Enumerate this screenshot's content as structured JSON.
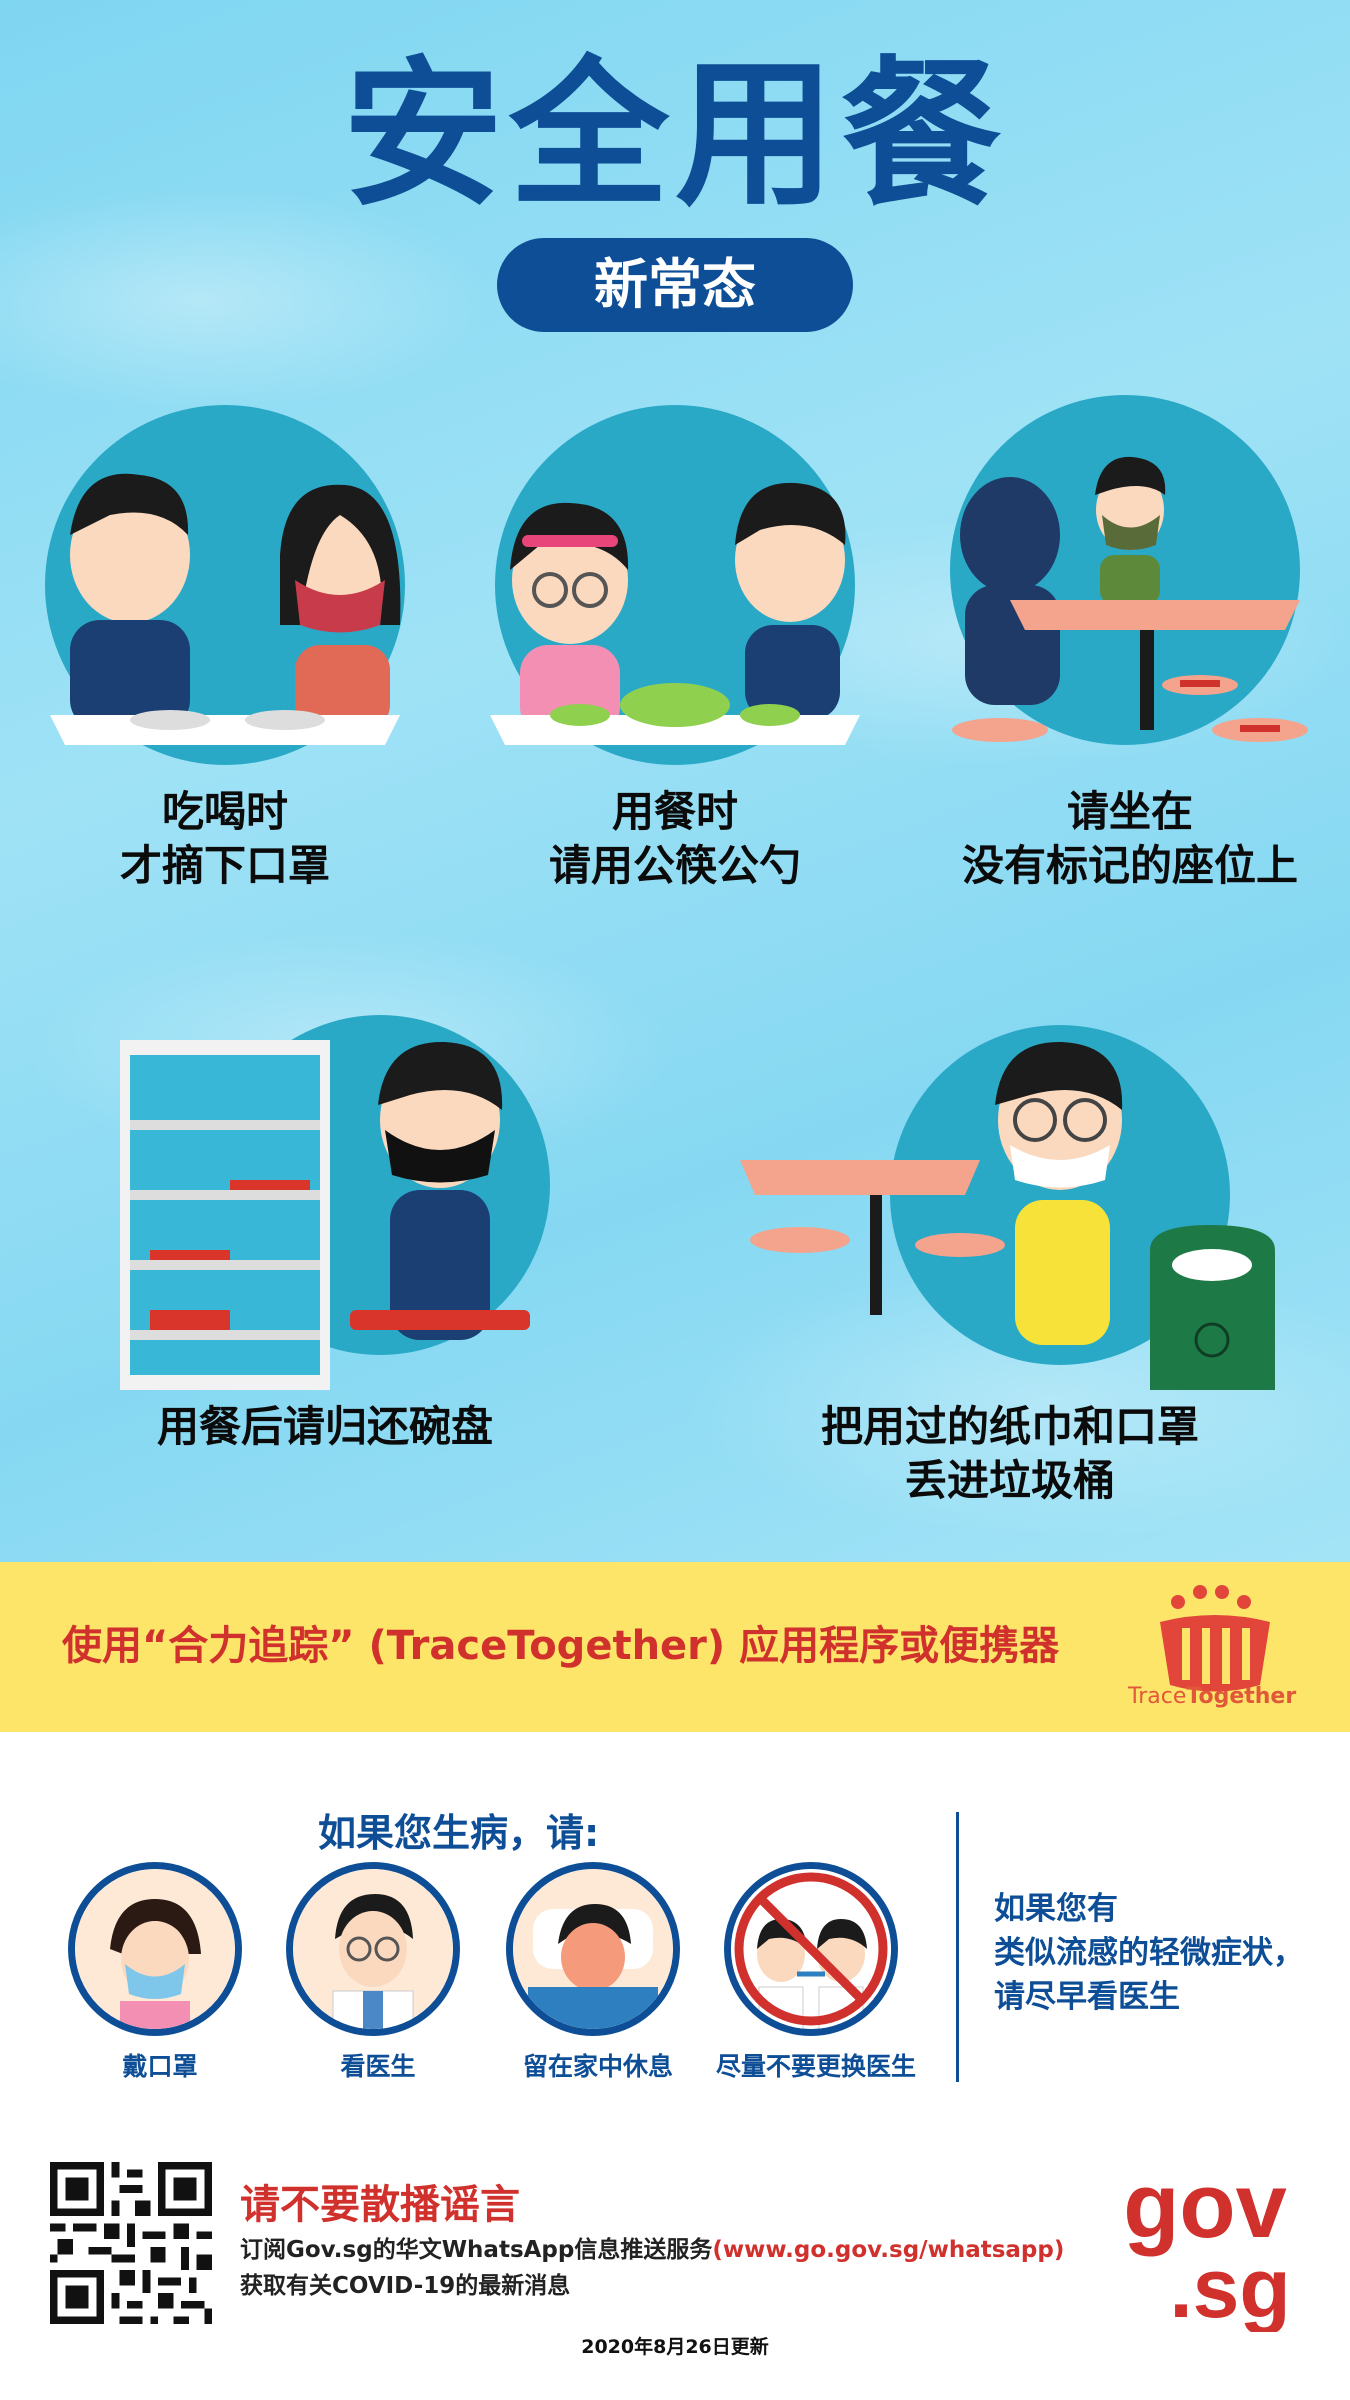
{
  "poster": {
    "title": "安全用餐",
    "subtitle": "新常态"
  },
  "tips": [
    {
      "line1": "吃喝时",
      "line2": "才摘下口罩"
    },
    {
      "line1": "用餐时",
      "line2": "请用公筷公勺"
    },
    {
      "line1": "请坐在",
      "line2": "没有标记的座位上"
    },
    {
      "line1": "用餐后请归还碗盘",
      "line2": ""
    },
    {
      "line1": "把用过的纸巾和口罩",
      "line2": "丢进垃圾桶"
    }
  ],
  "tracetogether": {
    "message": "使用“合力追踪” (TraceTogether) 应用程序或便携器",
    "logo_text_a": "Trace",
    "logo_text_b": "Together"
  },
  "sick": {
    "heading": "如果您生病，请:",
    "items": [
      {
        "label": "戴口罩",
        "icon": "mask-icon"
      },
      {
        "label": "看医生",
        "icon": "doctor-icon"
      },
      {
        "label": "留在家中休息",
        "icon": "rest-at-home-icon"
      },
      {
        "label": "尽量不要更换医生",
        "icon": "no-doctor-switch-icon"
      }
    ],
    "note_line1": "如果您有",
    "note_line2": "类似流感的轻微症状，",
    "note_line3": "请尽早看医生"
  },
  "footer": {
    "rumour_title": "请不要散播谣言",
    "subscribe_text": "订阅Gov.sg的华文WhatsApp信息推送服务",
    "subscribe_url": "(www.go.gov.sg/whatsapp)",
    "latest_text": "获取有关COVID-19的最新消息",
    "updated": "2020年8月26日更新",
    "gov_logo_top": "gov",
    "gov_logo_bottom": ".sg"
  },
  "colors": {
    "navy": "#0d4e96",
    "red": "#d0312d",
    "yellow": "#fde56a",
    "sky": "#8fdcf3"
  }
}
